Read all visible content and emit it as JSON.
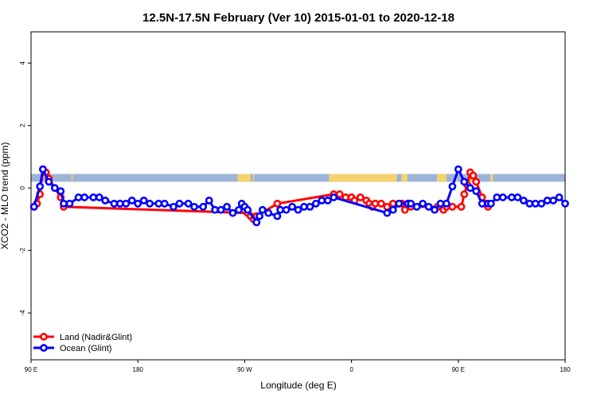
{
  "chart_data": {
    "type": "line",
    "title": "12.5N-17.5N February (Ver 10)   2015-01-01 to 2020-12-18",
    "xlabel": "Longitude (deg E)",
    "ylabel": "XCO2 - MLO trend (ppm)",
    "xlim": [
      90,
      540
    ],
    "ylim": [
      -5.5,
      5
    ],
    "x_ticks": [
      {
        "value": 90,
        "label": "90 E"
      },
      {
        "value": 180,
        "label": "180"
      },
      {
        "value": 270,
        "label": "90 W"
      },
      {
        "value": 360,
        "label": "0"
      },
      {
        "value": 450,
        "label": "90 E"
      },
      {
        "value": 540,
        "label": "180"
      }
    ],
    "y_ticks": [
      {
        "value": -4,
        "label": "-4"
      },
      {
        "value": -2,
        "label": "-2"
      },
      {
        "value": 0,
        "label": "0"
      },
      {
        "value": 2,
        "label": "2"
      },
      {
        "value": 4,
        "label": "4"
      }
    ],
    "grid": false,
    "legend_position": "bottom-left",
    "land_band": {
      "y_range": [
        0.2,
        0.45
      ],
      "ocean_color": "#9db4d8",
      "land_color": "#f5d26e",
      "land_segments": [
        [
          102,
          105
        ],
        [
          124,
          125
        ],
        [
          264,
          275
        ],
        [
          277,
          278
        ],
        [
          341,
          398
        ],
        [
          402,
          407
        ],
        [
          432,
          440
        ],
        [
          448,
          449
        ],
        [
          459,
          462
        ],
        [
          477,
          479
        ]
      ]
    },
    "series": [
      {
        "name": "Land (Nadir&Glint)",
        "color": "#ff0000",
        "x": [
          92.5,
          95,
          97.5,
          100,
          102.5,
          105,
          115,
          117.5,
          272.5,
          275,
          277.5,
          280,
          297.5,
          345,
          350,
          355,
          360,
          362.5,
          367.5,
          372.5,
          375,
          377.5,
          380,
          385,
          390,
          395,
          400,
          402.5,
          405,
          410,
          432.5,
          437.5,
          440,
          445,
          452.5,
          455,
          457.5,
          460,
          462.5,
          465,
          470,
          472.5,
          475
        ],
        "y": [
          -0.6,
          -0.5,
          -0.2,
          0.6,
          0.5,
          0.3,
          -0.3,
          -0.6,
          -0.8,
          -0.9,
          -1.0,
          -0.9,
          -0.5,
          -0.2,
          -0.2,
          -0.3,
          -0.3,
          -0.4,
          -0.3,
          -0.4,
          -0.5,
          -0.6,
          -0.5,
          -0.5,
          -0.6,
          -0.5,
          -0.5,
          -0.5,
          -0.7,
          -0.6,
          -0.6,
          -0.7,
          -0.6,
          -0.6,
          -0.6,
          -0.2,
          0.1,
          0.5,
          0.4,
          0.2,
          -0.3,
          -0.5,
          -0.6
        ]
      },
      {
        "name": "Ocean (Glint)",
        "color": "#0000ff",
        "x": [
          92.5,
          97.5,
          100,
          105,
          110,
          115,
          117.5,
          122.5,
          130,
          135,
          142.5,
          147.5,
          152.5,
          160,
          165,
          170,
          175,
          180,
          185,
          190,
          197.5,
          202.5,
          210,
          215,
          222.5,
          227.5,
          235,
          240,
          245,
          250,
          255,
          260,
          265,
          267.5,
          270,
          272.5,
          280,
          282.5,
          285,
          290,
          297.5,
          300,
          305,
          310,
          315,
          320,
          325,
          330,
          335,
          340,
          345,
          390,
          395,
          400,
          407.5,
          410,
          415,
          420,
          425,
          430,
          435,
          440,
          445,
          450,
          455,
          460,
          465,
          470,
          475,
          477.5,
          482.5,
          487.5,
          495,
          500,
          505,
          510,
          515,
          520,
          525,
          530,
          535,
          540
        ],
        "y": [
          -0.6,
          0.05,
          0.6,
          0.2,
          0.0,
          -0.1,
          -0.5,
          -0.5,
          -0.3,
          -0.3,
          -0.3,
          -0.3,
          -0.4,
          -0.5,
          -0.5,
          -0.5,
          -0.4,
          -0.5,
          -0.4,
          -0.5,
          -0.5,
          -0.5,
          -0.6,
          -0.5,
          -0.5,
          -0.6,
          -0.6,
          -0.4,
          -0.7,
          -0.7,
          -0.6,
          -0.8,
          -0.7,
          -0.5,
          -0.6,
          -0.7,
          -1.1,
          -0.9,
          -0.7,
          -0.8,
          -0.9,
          -0.7,
          -0.7,
          -0.6,
          -0.7,
          -0.6,
          -0.6,
          -0.5,
          -0.4,
          -0.4,
          -0.3,
          -0.8,
          -0.7,
          -0.5,
          -0.5,
          -0.5,
          -0.6,
          -0.5,
          -0.6,
          -0.7,
          -0.5,
          -0.5,
          0.05,
          0.6,
          0.2,
          0.0,
          -0.1,
          -0.5,
          -0.5,
          -0.5,
          -0.3,
          -0.3,
          -0.3,
          -0.3,
          -0.4,
          -0.5,
          -0.5,
          -0.5,
          -0.4,
          -0.4,
          -0.3,
          -0.5
        ]
      }
    ]
  }
}
